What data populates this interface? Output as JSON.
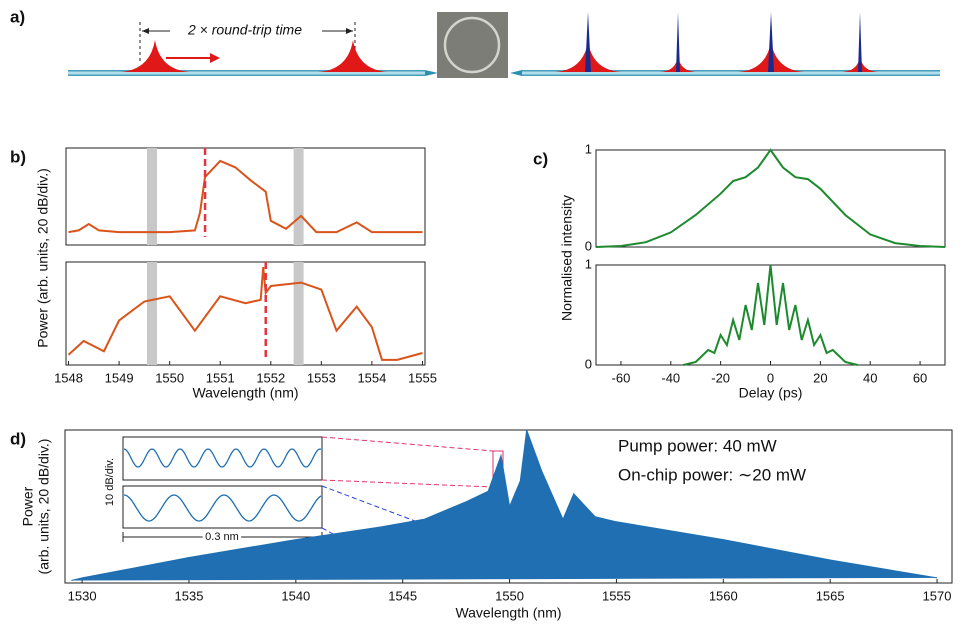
{
  "diagram": {
    "label": "a)",
    "annotation": "2 × round-trip time"
  },
  "chart_data": [
    {
      "type": "line",
      "panel_label": "b)",
      "ylabel": "Power (arb. units, 20 dB/div.)",
      "color": "#d9541a",
      "x": [
        1548,
        1548.2,
        1548.4,
        1548.6,
        1549,
        1549.5,
        1550,
        1550.5,
        1550.6,
        1550.7,
        1551,
        1551.3,
        1551.6,
        1551.9,
        1552,
        1552.3,
        1552.6,
        1552.9,
        1553.3,
        1553.7,
        1554,
        1554.5,
        1555
      ],
      "values": [
        8,
        9,
        13,
        9,
        8,
        8,
        8,
        9,
        20,
        42,
        52,
        48,
        40,
        33,
        15,
        10,
        18,
        8,
        8,
        14,
        8,
        8,
        8
      ],
      "xlim": [
        1547.95,
        1555.05
      ],
      "ylim": [
        0,
        60
      ],
      "highlight_x": [
        1549.65,
        1552.55
      ],
      "marker_x": 1550.7
    },
    {
      "type": "line",
      "xlabel": "Wavelength (nm)",
      "color": "#d9541a",
      "x": [
        1548,
        1548.3,
        1548.7,
        1549,
        1549.5,
        1550,
        1550.5,
        1551,
        1551.5,
        1551.8,
        1551.85,
        1551.9,
        1552,
        1552.6,
        1553,
        1553.3,
        1553.7,
        1554,
        1554.2,
        1554.5,
        1555
      ],
      "values": [
        6,
        14,
        8,
        26,
        37,
        40,
        20,
        40,
        36,
        38,
        57,
        42,
        46,
        48,
        44,
        20,
        34,
        22,
        3,
        3,
        7
      ],
      "xlim": [
        1547.95,
        1555.05
      ],
      "ylim": [
        0,
        60
      ],
      "xticks": [
        1548,
        1549,
        1550,
        1551,
        1552,
        1553,
        1554,
        1555
      ],
      "highlight_x": [
        1549.65,
        1552.55
      ],
      "marker_x": 1551.9
    },
    {
      "type": "line",
      "panel_label": "c)",
      "ylabel": "Normalised intensity",
      "color": "#1e8a2e",
      "x": [
        -70,
        -60,
        -50,
        -40,
        -30,
        -20,
        -15,
        -10,
        -5,
        0,
        5,
        10,
        15,
        20,
        30,
        40,
        50,
        60,
        70
      ],
      "values": [
        0,
        0.01,
        0.05,
        0.15,
        0.33,
        0.55,
        0.68,
        0.72,
        0.82,
        1,
        0.82,
        0.72,
        0.7,
        0.6,
        0.33,
        0.13,
        0.04,
        0.01,
        0
      ],
      "xlim": [
        -70,
        70
      ],
      "ylim": [
        0,
        1
      ],
      "yticks": [
        0,
        1
      ]
    },
    {
      "type": "line",
      "xlabel": "Delay (ps)",
      "color": "#1e8a2e",
      "x": [
        -35,
        -30,
        -25,
        -22.5,
        -20,
        -17.5,
        -15,
        -12.5,
        -10,
        -7.5,
        -5,
        -2.5,
        0,
        2.5,
        5,
        7.5,
        10,
        12.5,
        15,
        17.5,
        20,
        22.5,
        25,
        30,
        35
      ],
      "values": [
        0,
        0.03,
        0.15,
        0.12,
        0.3,
        0.2,
        0.45,
        0.25,
        0.6,
        0.35,
        0.82,
        0.4,
        1,
        0.4,
        0.82,
        0.35,
        0.6,
        0.25,
        0.45,
        0.2,
        0.3,
        0.12,
        0.15,
        0.03,
        0
      ],
      "xlim": [
        -70,
        70
      ],
      "ylim": [
        0,
        1
      ],
      "yticks": [
        0,
        1
      ],
      "xticks": [
        -60,
        -40,
        -20,
        0,
        20,
        40,
        60
      ]
    },
    {
      "type": "area",
      "panel_label": "d)",
      "ylabel_lines": [
        "Power",
        "(arb. units, 20 dB/div.)"
      ],
      "xlabel": "Wavelength (nm)",
      "color": "#1f6fb2",
      "x": [
        1529.5,
        1530,
        1535,
        1540,
        1544,
        1546,
        1548,
        1549,
        1549.6,
        1550,
        1550.5,
        1550.8,
        1551.5,
        1552.5,
        1553,
        1554,
        1555,
        1560,
        1565,
        1570
      ],
      "values": [
        1,
        2,
        10,
        17,
        22,
        25,
        32,
        36,
        50,
        30,
        40,
        60,
        44,
        25,
        35,
        26,
        24,
        17,
        9,
        2
      ],
      "xlim": [
        1529.2,
        1570.7
      ],
      "ylim": [
        0,
        60
      ],
      "xticks": [
        1530,
        1535,
        1540,
        1545,
        1550,
        1555,
        1560,
        1565,
        1570
      ],
      "annotations": [
        "Pump power: 40 mW",
        "On-chip power: ∼20 mW"
      ],
      "inset": {
        "ylabel": "10 dB/div.",
        "xlabel": "0.3 nm"
      }
    }
  ]
}
